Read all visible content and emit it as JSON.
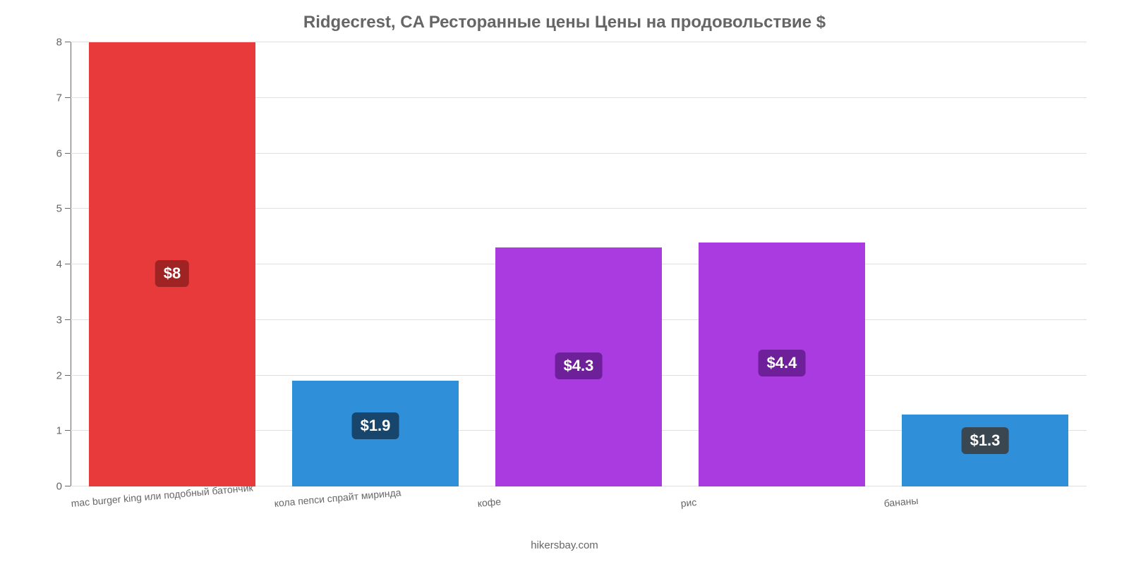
{
  "chart": {
    "type": "bar",
    "title": "Ridgecrest, CA Ресторанные цены Цены на продовольствие $",
    "title_color": "#666666",
    "title_fontsize": 24,
    "background_color": "#ffffff",
    "grid_color": "#e0e0e0",
    "axis_color": "#666666",
    "label_color": "#666666",
    "ylim": [
      0,
      8
    ],
    "ytick_step": 1,
    "yticks": [
      "0",
      "1",
      "2",
      "3",
      "4",
      "5",
      "6",
      "7",
      "8"
    ],
    "bar_width": 0.82,
    "value_label_fontsize": 22,
    "x_label_fontsize": 14,
    "x_label_rotation_deg": -5,
    "credit": "hikersbay.com",
    "categories": [
      "mac burger king или подобный батончик",
      "кола пепси спрайт миринда",
      "кофе",
      "рис",
      "бананы"
    ],
    "values": [
      8,
      1.9,
      4.3,
      4.4,
      1.3
    ],
    "value_labels": [
      "$8",
      "$1.9",
      "$4.3",
      "$4.4",
      "$1.3"
    ],
    "bar_colors": [
      "#e83a3a",
      "#2f8fd8",
      "#aa3be0",
      "#aa3be0",
      "#2f8fd8"
    ],
    "badge_colors": [
      "#a02323",
      "#18456b",
      "#6e1f9a",
      "#6e1f9a",
      "#3a4750"
    ],
    "value_label_color": "#ffffff"
  }
}
